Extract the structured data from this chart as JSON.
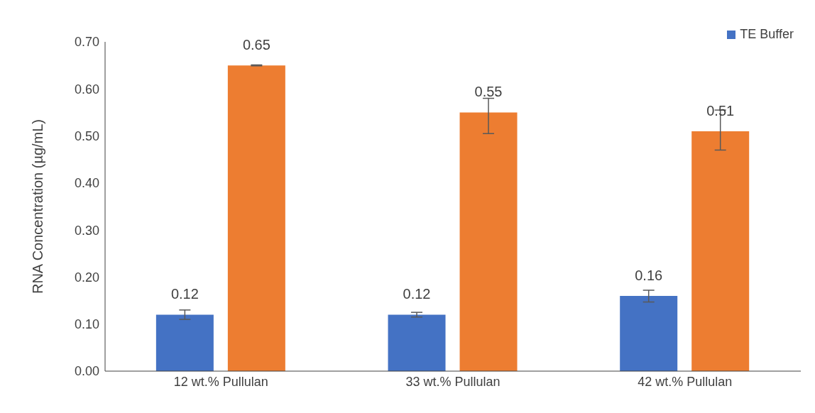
{
  "chart_data": {
    "type": "bar",
    "ylabel": "RNA Concentration (µg/mL)",
    "categories": [
      "12 wt.% Pullulan",
      "33 wt.% Pullulan",
      "42 wt.% Pullulan"
    ],
    "series": [
      {
        "name": "TE Buffer",
        "color": "#4472c4",
        "values": [
          0.12,
          0.12,
          0.16
        ],
        "errors": [
          0.01,
          0.005,
          [
            0.147,
            0.172
          ]
        ]
      },
      {
        "color": "#ed7d31",
        "values": [
          0.65,
          0.55,
          0.51
        ],
        "errors": [
          0.001,
          [
            0.505,
            0.58
          ],
          [
            0.47,
            0.555
          ]
        ]
      }
    ],
    "ylim": [
      0,
      0.7
    ],
    "yticks": [
      {
        "value": 0,
        "label": "0.00"
      },
      {
        "value": 0.1,
        "label": "0.10"
      },
      {
        "value": 0.2,
        "label": "0.20"
      },
      {
        "value": 0.3,
        "label": "0.30"
      },
      {
        "value": 0.4,
        "label": "0.40"
      },
      {
        "value": 0.5,
        "label": "0.50"
      },
      {
        "value": 0.6,
        "label": "0.60"
      },
      {
        "value": 0.7,
        "label": "0.70"
      }
    ],
    "data_labels": true,
    "legend": "top right",
    "grid": false
  }
}
